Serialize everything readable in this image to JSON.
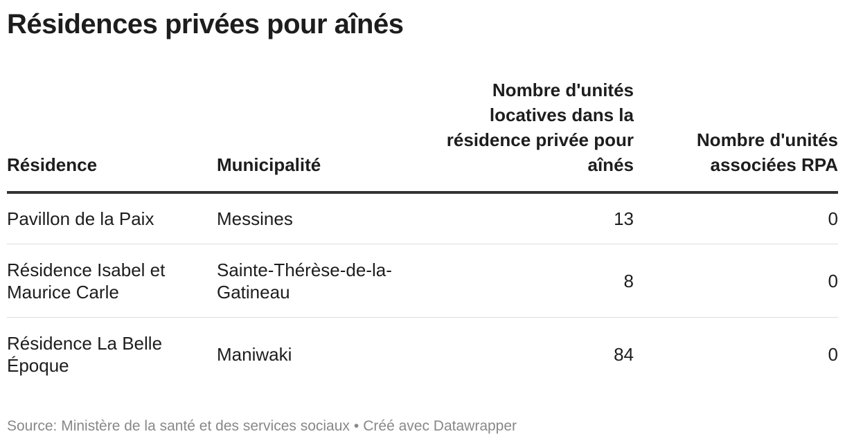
{
  "title": "Résidences privées pour aînés",
  "table": {
    "headers": [
      "Résidence",
      "Municipalité",
      "Nombre d'unités locatives dans la résidence privée pour aînés",
      "Nombre d'unités associées RPA"
    ],
    "rows": [
      [
        "Pavillon de la Paix",
        "Messines",
        "13",
        "0"
      ],
      [
        "Résidence Isabel et Maurice Carle",
        "Sainte-Thérèse-de-la-Gatineau",
        "8",
        "0"
      ],
      [
        "Résidence La Belle Époque",
        "Maniwaki",
        "84",
        "0"
      ]
    ]
  },
  "chart_data": {
    "type": "table",
    "title": "Résidences privées pour aînés",
    "columns": [
      "Résidence",
      "Municipalité",
      "Nombre d'unités locatives dans la résidence privée pour aînés",
      "Nombre d'unités associées RPA"
    ],
    "rows": [
      [
        "Pavillon de la Paix",
        "Messines",
        13,
        0
      ],
      [
        "Résidence Isabel et Maurice Carle",
        "Sainte-Thérèse-de-la-Gatineau",
        8,
        0
      ],
      [
        "Résidence La Belle Époque",
        "Maniwaki",
        84,
        0
      ]
    ]
  },
  "footer": {
    "source": "Source: Ministère de la santé et des services sociaux",
    "separator": "•",
    "credit": "Créé avec Datawrapper"
  }
}
